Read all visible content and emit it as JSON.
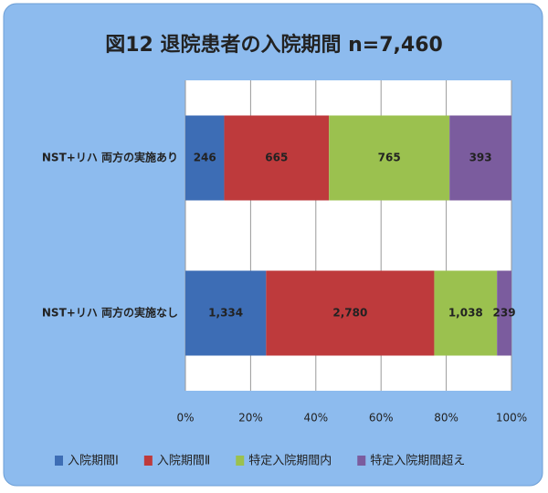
{
  "chart_data": {
    "type": "bar",
    "orientation": "horizontal",
    "stack": "percent",
    "title": "図12  退院患者の入院期間  n=7,460",
    "categories": [
      "NST+リハ 両方の実施あり",
      "NST+リハ 両方の実施なし"
    ],
    "series": [
      {
        "name": "入院期間Ⅰ",
        "color": "#3d6db5",
        "values": [
          246,
          1334
        ],
        "value_labels": [
          "246",
          "1,334"
        ]
      },
      {
        "name": "入院期間Ⅱ",
        "color": "#be3a3c",
        "values": [
          665,
          2780
        ],
        "value_labels": [
          "665",
          "2,780"
        ]
      },
      {
        "name": "特定入院期間内",
        "color": "#9bc14f",
        "values": [
          765,
          1038
        ],
        "value_labels": [
          "765",
          "1,038"
        ]
      },
      {
        "name": "特定入院期間超え",
        "color": "#7b5c9e",
        "values": [
          393,
          239
        ],
        "value_labels": [
          "393",
          "239"
        ]
      }
    ],
    "xlim": [
      0,
      100
    ],
    "xticks": [
      {
        "value": 0,
        "label": "0%"
      },
      {
        "value": 20,
        "label": "20%"
      },
      {
        "value": 40,
        "label": "40%"
      },
      {
        "value": 60,
        "label": "60%"
      },
      {
        "value": 80,
        "label": "80%"
      },
      {
        "value": 100,
        "label": "100%"
      }
    ],
    "grid": true,
    "legend": "bottom"
  }
}
